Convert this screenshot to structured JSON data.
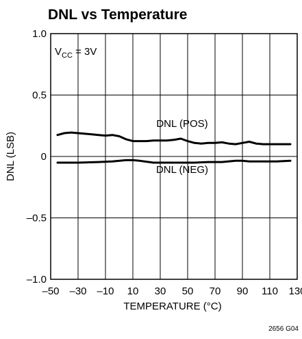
{
  "figure_id": "2656 G04",
  "chart_data": {
    "type": "line",
    "title": "DNL vs Temperature",
    "xlabel": "TEMPERATURE (°C)",
    "ylabel": "DNL (LSB)",
    "xlim": [
      -50,
      130
    ],
    "ylim": [
      -1.0,
      1.0
    ],
    "x_ticks": [
      -50,
      -30,
      -10,
      10,
      30,
      50,
      70,
      90,
      110,
      130
    ],
    "x_tick_labels": [
      "–50",
      "–30",
      "–10",
      "10",
      "30",
      "50",
      "70",
      "90",
      "110",
      "130"
    ],
    "y_ticks": [
      -1.0,
      -0.5,
      0,
      0.5,
      1.0
    ],
    "y_tick_labels": [
      "–1.0",
      "–0.5",
      "0",
      "0.5",
      "1.0"
    ],
    "grid": true,
    "legend": "none",
    "condition": {
      "main": "V",
      "sub": "CC",
      "rest": " = 3V"
    },
    "series": [
      {
        "name": "DNL (POS)",
        "x": [
          -45,
          -40,
          -35,
          -30,
          -25,
          -20,
          -15,
          -10,
          -5,
          0,
          5,
          10,
          15,
          20,
          25,
          30,
          35,
          40,
          45,
          50,
          55,
          60,
          65,
          70,
          75,
          80,
          85,
          90,
          95,
          100,
          105,
          110,
          115,
          120,
          125
        ],
        "y": [
          0.175,
          0.19,
          0.195,
          0.19,
          0.185,
          0.18,
          0.175,
          0.17,
          0.175,
          0.165,
          0.14,
          0.125,
          0.125,
          0.125,
          0.13,
          0.13,
          0.13,
          0.135,
          0.145,
          0.125,
          0.11,
          0.105,
          0.11,
          0.11,
          0.115,
          0.105,
          0.1,
          0.11,
          0.12,
          0.105,
          0.1,
          0.1,
          0.1,
          0.1,
          0.1
        ]
      },
      {
        "name": "DNL (NEG)",
        "x": [
          -45,
          -30,
          -15,
          -5,
          5,
          10,
          15,
          25,
          35,
          45,
          55,
          65,
          75,
          85,
          90,
          95,
          105,
          115,
          125
        ],
        "y": [
          -0.05,
          -0.05,
          -0.045,
          -0.04,
          -0.03,
          -0.03,
          -0.035,
          -0.05,
          -0.05,
          -0.05,
          -0.05,
          -0.045,
          -0.045,
          -0.035,
          -0.035,
          -0.04,
          -0.04,
          -0.04,
          -0.035
        ]
      }
    ],
    "annotations": [
      {
        "text": "DNL (POS)",
        "x": 46,
        "y": 0.24
      },
      {
        "text": "DNL (NEG)",
        "x": 46,
        "y": -0.135
      }
    ]
  }
}
